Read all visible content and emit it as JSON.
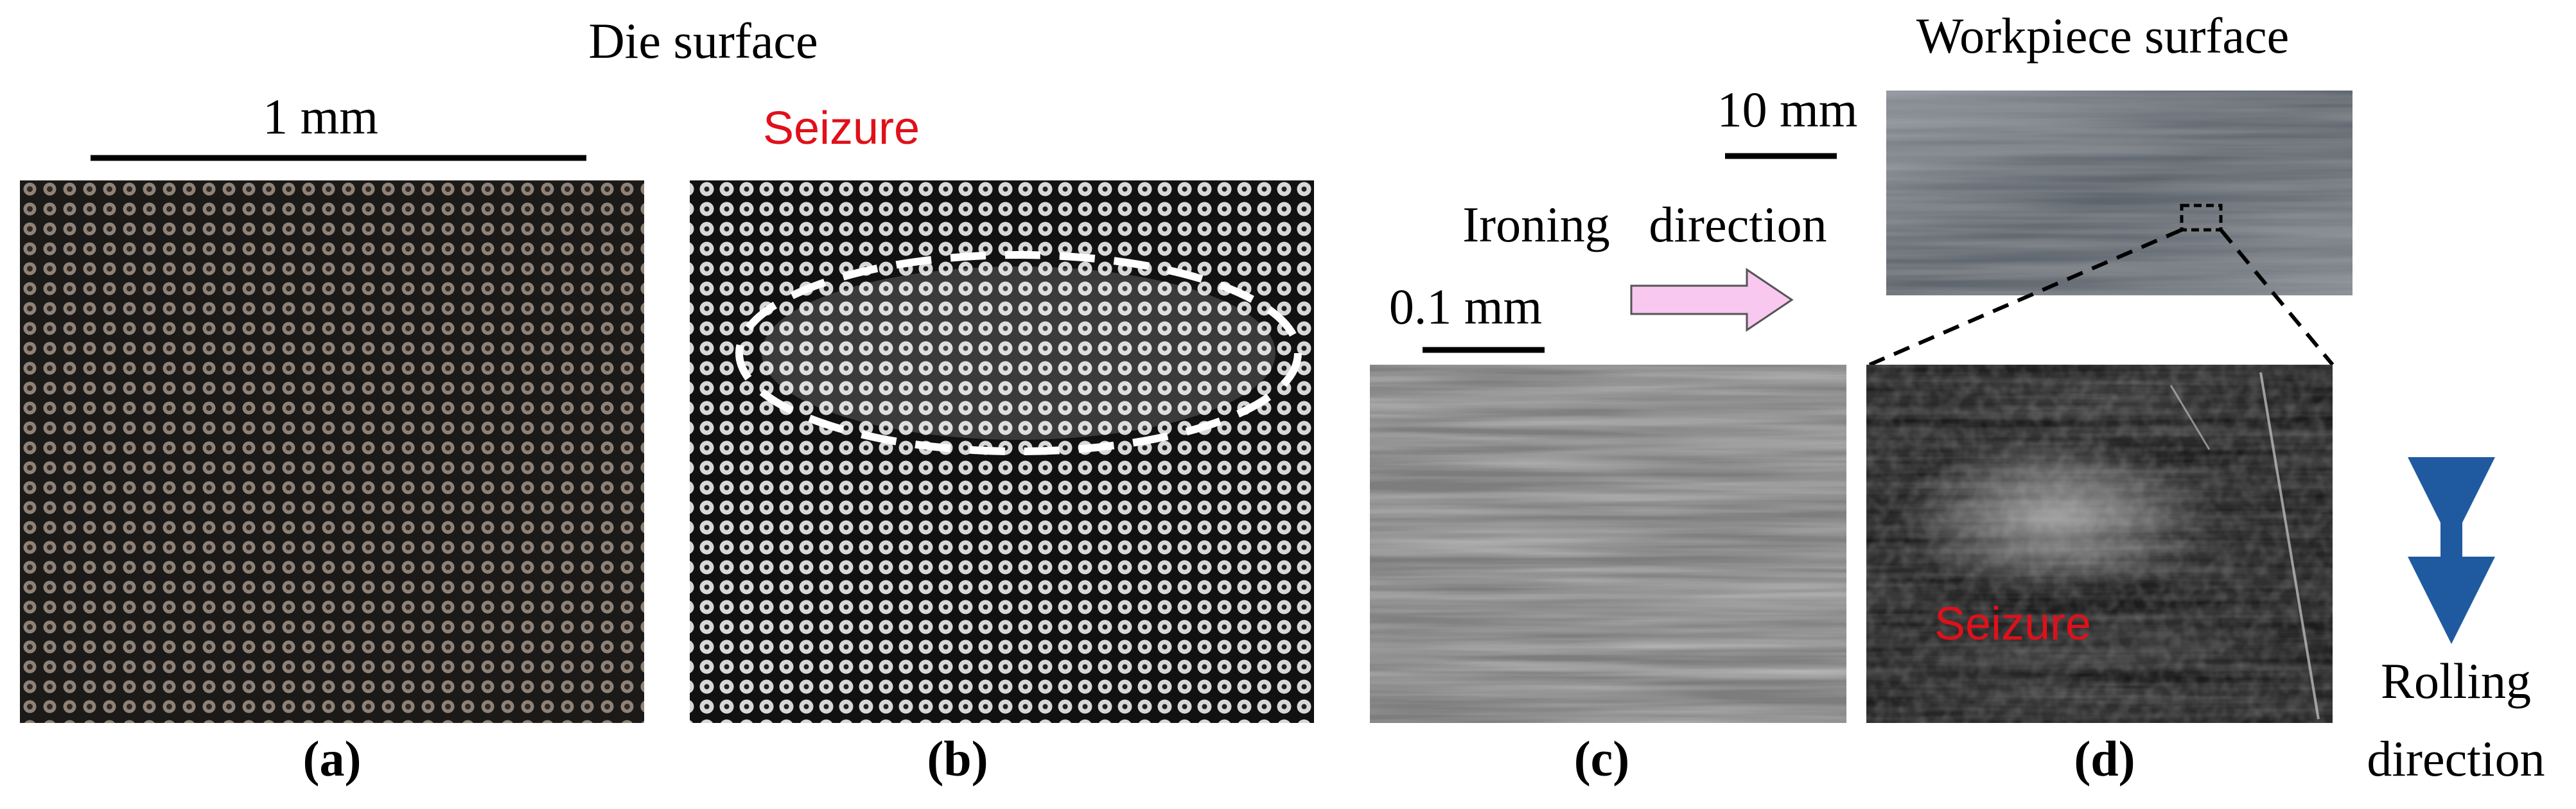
{
  "die_surface": {
    "title": "Die surface",
    "scale_bar": "1 mm",
    "seizure_label": "Seizure"
  },
  "workpiece_surface": {
    "title": "Workpiece surface",
    "scale_bar": "10 mm"
  },
  "ironing_direction": {
    "line1": "Ironing",
    "line2": "direction"
  },
  "panel_c": {
    "scale_bar": "0.1 mm"
  },
  "panel_d": {
    "seizure_label": "Seizure"
  },
  "rolling_direction": {
    "line1": "Rolling",
    "line2": "direction"
  },
  "panel_labels": [
    "(a)",
    "(b)",
    "(c)",
    "(d)"
  ]
}
